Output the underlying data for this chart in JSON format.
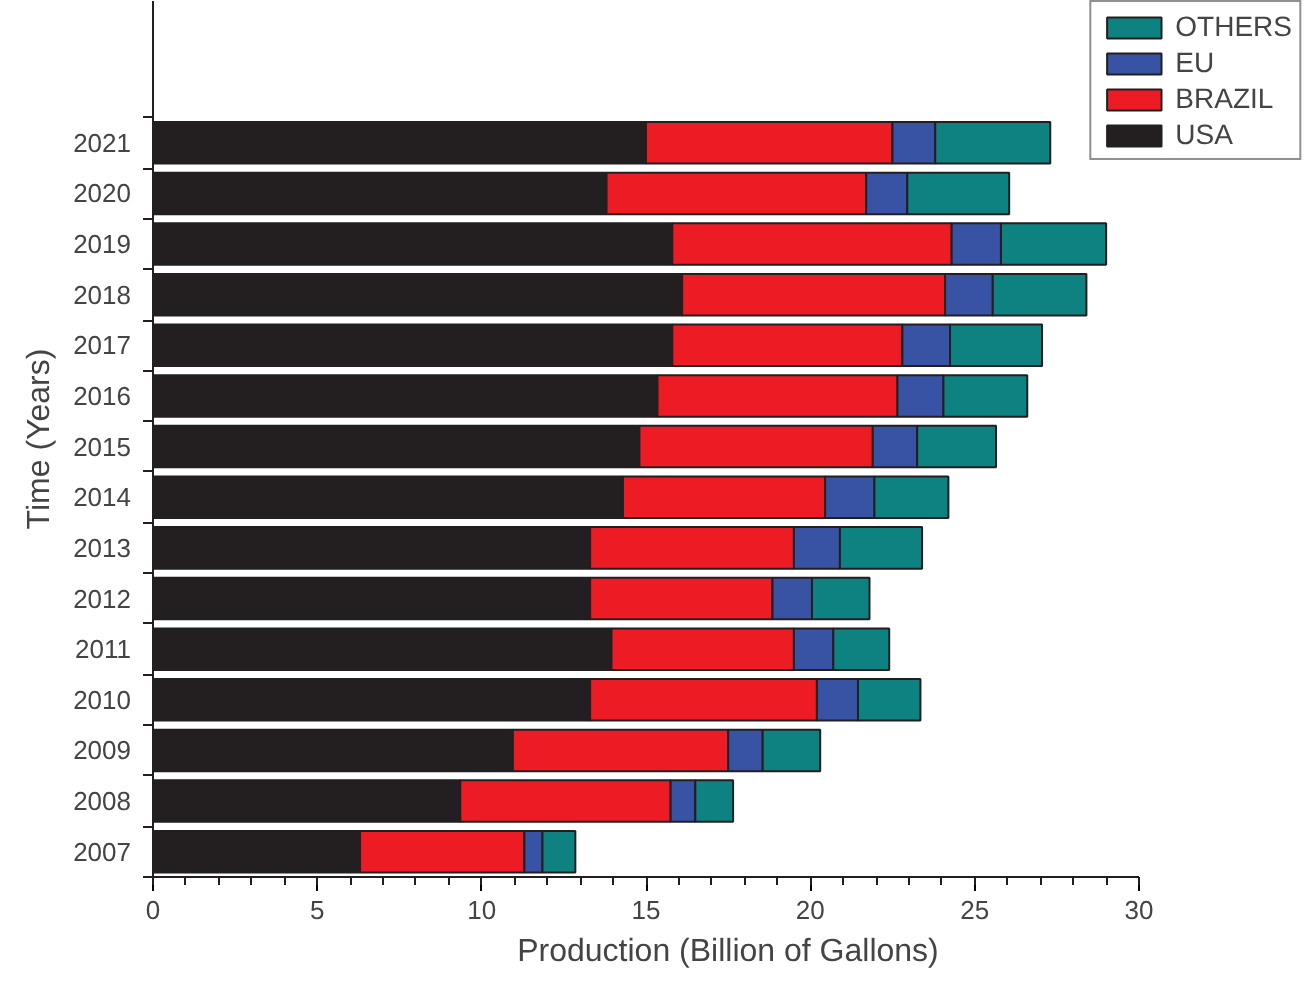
{
  "chart_data": {
    "type": "bar",
    "orientation": "horizontal",
    "stacked": true,
    "xlabel": "Production (Billion of Gallons)",
    "ylabel": "Time (Years)",
    "categories": [
      "2021",
      "2020",
      "2019",
      "2018",
      "2017",
      "2016",
      "2015",
      "2014",
      "2013",
      "2012",
      "2011",
      "2010",
      "2009",
      "2008",
      "2007"
    ],
    "series": [
      {
        "name": "USA",
        "color": "#231f20",
        "values": [
          15.0,
          13.8,
          15.8,
          16.1,
          15.8,
          15.35,
          14.8,
          14.3,
          13.3,
          13.3,
          13.95,
          13.3,
          10.95,
          9.35,
          6.3
        ]
      },
      {
        "name": "BRAZIL",
        "color": "#ed1c24",
        "values": [
          7.5,
          7.9,
          8.5,
          8.0,
          7.0,
          7.3,
          7.1,
          6.15,
          6.2,
          5.55,
          5.55,
          6.9,
          6.55,
          6.4,
          5.0
        ]
      },
      {
        "name": "EU",
        "color": "#3953a4",
        "values": [
          1.3,
          1.25,
          1.5,
          1.45,
          1.45,
          1.4,
          1.35,
          1.5,
          1.4,
          1.2,
          1.2,
          1.25,
          1.05,
          0.75,
          0.55
        ]
      },
      {
        "name": "OTHERS",
        "color": "#0e8280",
        "values": [
          3.5,
          3.1,
          3.2,
          2.85,
          2.8,
          2.55,
          2.4,
          2.25,
          2.5,
          1.75,
          1.7,
          1.9,
          1.75,
          1.15,
          1.0
        ]
      }
    ],
    "xlim": [
      0,
      30
    ],
    "xticks": [
      0,
      5,
      10,
      15,
      20,
      25,
      30
    ],
    "grid": false,
    "legend": "top right"
  }
}
